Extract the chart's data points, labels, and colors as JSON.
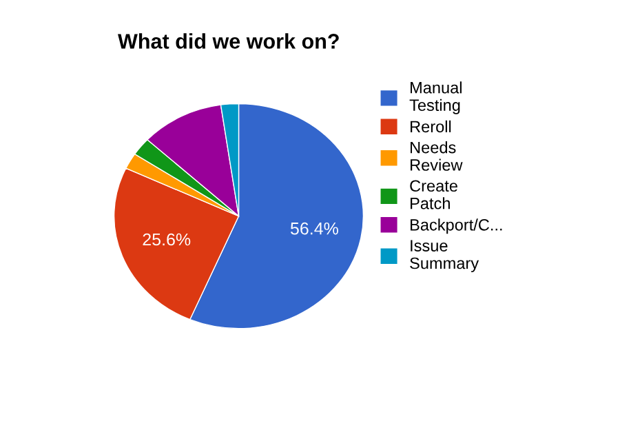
{
  "chart_data": {
    "type": "pie",
    "title": "What did we work on?",
    "categories": [
      "Manual Testing",
      "Reroll",
      "Needs Review",
      "Create Patch",
      "Backport/C...",
      "Issue Summary"
    ],
    "values": [
      56.4,
      25.6,
      2.3,
      2.6,
      10.8,
      2.3
    ],
    "colors": [
      "#3366cc",
      "#dc3912",
      "#ff9900",
      "#109618",
      "#990099",
      "#0099c6"
    ],
    "value_labels": [
      "56.4%",
      "25.6%",
      null,
      null,
      null,
      null
    ],
    "legend": "right"
  }
}
